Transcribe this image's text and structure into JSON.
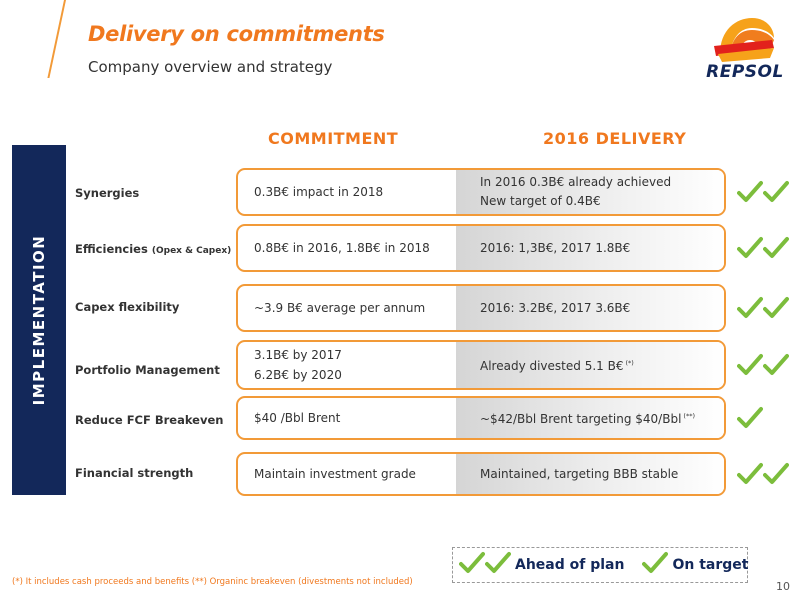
{
  "header": {
    "title": "Delivery on commitments",
    "subtitle": "Company overview and strategy"
  },
  "logo": {
    "text": "REPSOL"
  },
  "columns": {
    "commitment": "COMMITMENT",
    "delivery": "2016 DELIVERY"
  },
  "side_label": "IMPLEMENTATION",
  "rows": [
    {
      "label": "Synergies",
      "label_small": "",
      "commitment": [
        "0.3B€ impact in 2018"
      ],
      "delivery": [
        "In 2016 0.3B€ already achieved",
        "New target of 0.4B€"
      ],
      "delivery_note": "",
      "status": "ahead"
    },
    {
      "label": "Efficiencies",
      "label_small": "(Opex & Capex)",
      "commitment": [
        "0.8B€ in 2016, 1.8B€ in 2018"
      ],
      "delivery": [
        "2016: 1,3B€, 2017 1.8B€"
      ],
      "delivery_note": "",
      "status": "ahead"
    },
    {
      "label": "Capex flexibility",
      "label_small": "",
      "commitment": [
        "~3.9 B€ average per annum"
      ],
      "delivery": [
        "2016: 3.2B€, 2017 3.6B€"
      ],
      "delivery_note": "",
      "status": "ahead"
    },
    {
      "label": "Portfolio Management",
      "label_small": "",
      "commitment": [
        "3.1B€ by 2017",
        "6.2B€ by 2020"
      ],
      "delivery": [
        "Already divested 5.1 B€"
      ],
      "delivery_note": "(*)",
      "status": "ahead"
    },
    {
      "label": "Reduce FCF Breakeven",
      "label_small": "",
      "commitment": [
        "$40 /Bbl Brent"
      ],
      "delivery": [
        "~$42/Bbl Brent targeting $40/Bbl"
      ],
      "delivery_note": "(**)",
      "status": "on_target"
    },
    {
      "label": "Financial strength",
      "label_small": "",
      "commitment": [
        "Maintain investment grade"
      ],
      "delivery": [
        "Maintained, targeting BBB stable"
      ],
      "delivery_note": "",
      "status": "ahead"
    }
  ],
  "legend": {
    "ahead": "Ahead of plan",
    "on_target": "On target"
  },
  "footnote": "(*) It includes cash proceeds and benefits  (**) Organinc breakeven (divestments not included)",
  "page_number": "10",
  "colors": {
    "accent": "#f0781e",
    "navy": "#13285a",
    "check": "#7cbd3c",
    "pill_border": "#f29a38"
  }
}
